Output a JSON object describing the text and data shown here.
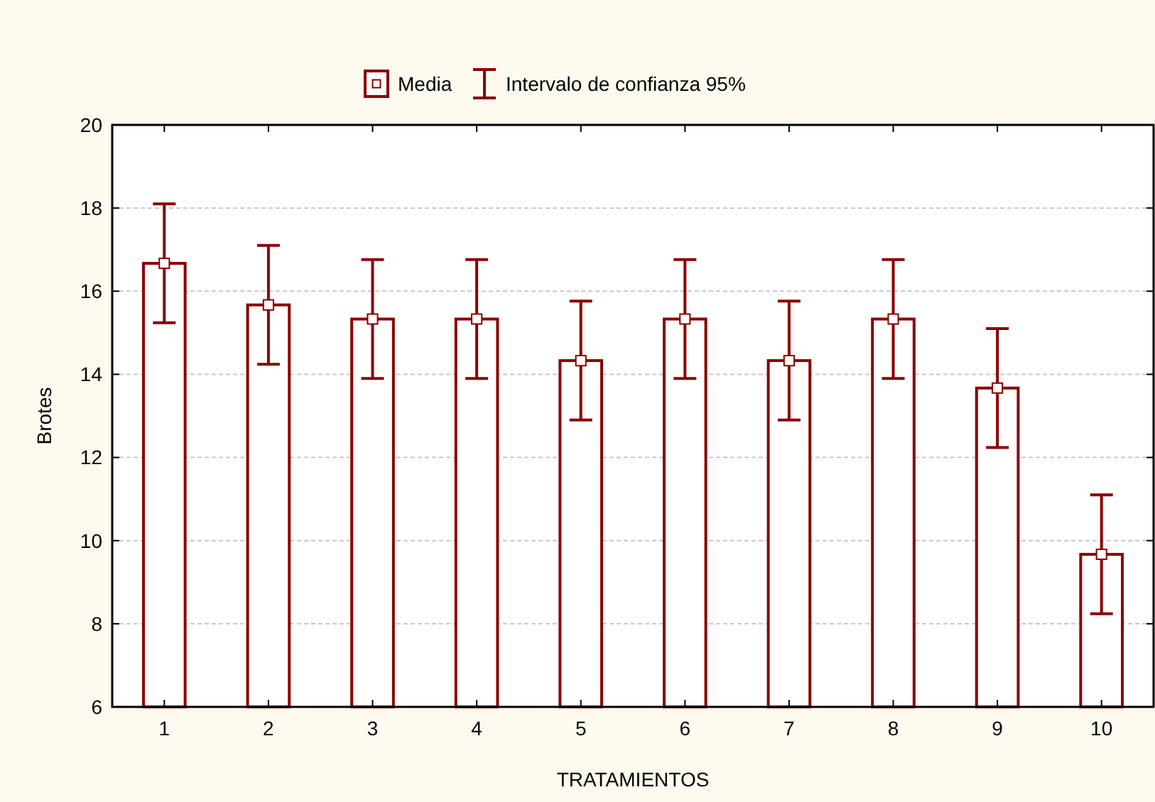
{
  "chart_data": {
    "type": "bar",
    "xlabel": "TRATAMIENTOS",
    "ylabel": "Brotes",
    "categories": [
      "1",
      "2",
      "3",
      "4",
      "5",
      "6",
      "7",
      "8",
      "9",
      "10"
    ],
    "series": [
      {
        "color": "#8b0000",
        "values": [
          16.67,
          15.67,
          15.33,
          15.33,
          14.33,
          15.33,
          14.33,
          15.33,
          13.67,
          9.67
        ]
      },
      {
        "type": "scatter",
        "name": "Media",
        "color": "#8b0000",
        "x": [
          "1",
          "2",
          "3",
          "4",
          "5",
          "6",
          "7",
          "8",
          "9",
          "10"
        ],
        "values": [
          16.67,
          15.67,
          15.33,
          15.33,
          14.33,
          15.33,
          14.33,
          15.33,
          13.67,
          9.67
        ],
        "errors": [
          1.43,
          1.43,
          1.43,
          1.43,
          1.43,
          1.43,
          1.43,
          1.43,
          1.43,
          1.43
        ]
      }
    ],
    "annotations": [
      "Intervalo de confianza 95%"
    ],
    "ylim": [
      6,
      20
    ],
    "yticks": [
      6,
      8,
      10,
      12,
      14,
      16,
      18,
      20
    ],
    "grid": "y",
    "legend": "top",
    "marker": "square"
  }
}
